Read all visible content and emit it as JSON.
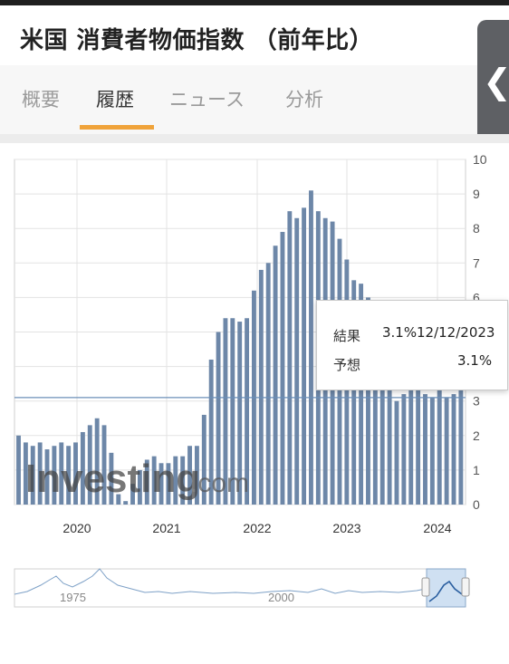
{
  "header": {
    "title": "米国 消費者物価指数 （前年比）"
  },
  "tabs": [
    {
      "label": "概要"
    },
    {
      "label": "履歴"
    },
    {
      "label": "ニュース"
    },
    {
      "label": "分析"
    }
  ],
  "side_handle": {
    "glyph": "❮"
  },
  "watermark": {
    "brand": "Investing",
    "suffix": ".com"
  },
  "tooltip": {
    "actual_label": "結果",
    "actual_value": "3.1%",
    "date": "12/12/2023",
    "forecast_label": "予想",
    "forecast_value": "3.1%"
  },
  "chart_data": {
    "type": "bar",
    "ylim": [
      0,
      10
    ],
    "yticks": [
      0,
      1,
      2,
      3,
      4,
      5,
      6,
      7,
      8,
      9,
      10
    ],
    "x_tick_labels": [
      "2020",
      "2021",
      "2022",
      "2023",
      "2024"
    ],
    "highlighted_value": 3.1,
    "values": [
      2.0,
      1.8,
      1.7,
      1.8,
      1.6,
      1.7,
      1.8,
      1.7,
      1.8,
      2.1,
      2.3,
      2.5,
      2.3,
      1.5,
      0.3,
      0.1,
      0.6,
      1.0,
      1.3,
      1.4,
      1.2,
      1.2,
      1.4,
      1.4,
      1.7,
      1.7,
      2.6,
      4.2,
      5.0,
      5.4,
      5.4,
      5.3,
      5.4,
      6.2,
      6.8,
      7.0,
      7.5,
      7.9,
      8.5,
      8.3,
      8.6,
      9.1,
      8.5,
      8.3,
      8.2,
      7.7,
      7.1,
      6.5,
      6.4,
      6.0,
      5.0,
      4.9,
      4.0,
      3.0,
      3.2,
      3.7,
      3.7,
      3.2,
      3.1,
      3.4,
      3.1,
      3.2,
      3.5
    ],
    "bar_color": "#6d87a8",
    "navigator_labels": [
      "1975",
      "2000"
    ]
  }
}
